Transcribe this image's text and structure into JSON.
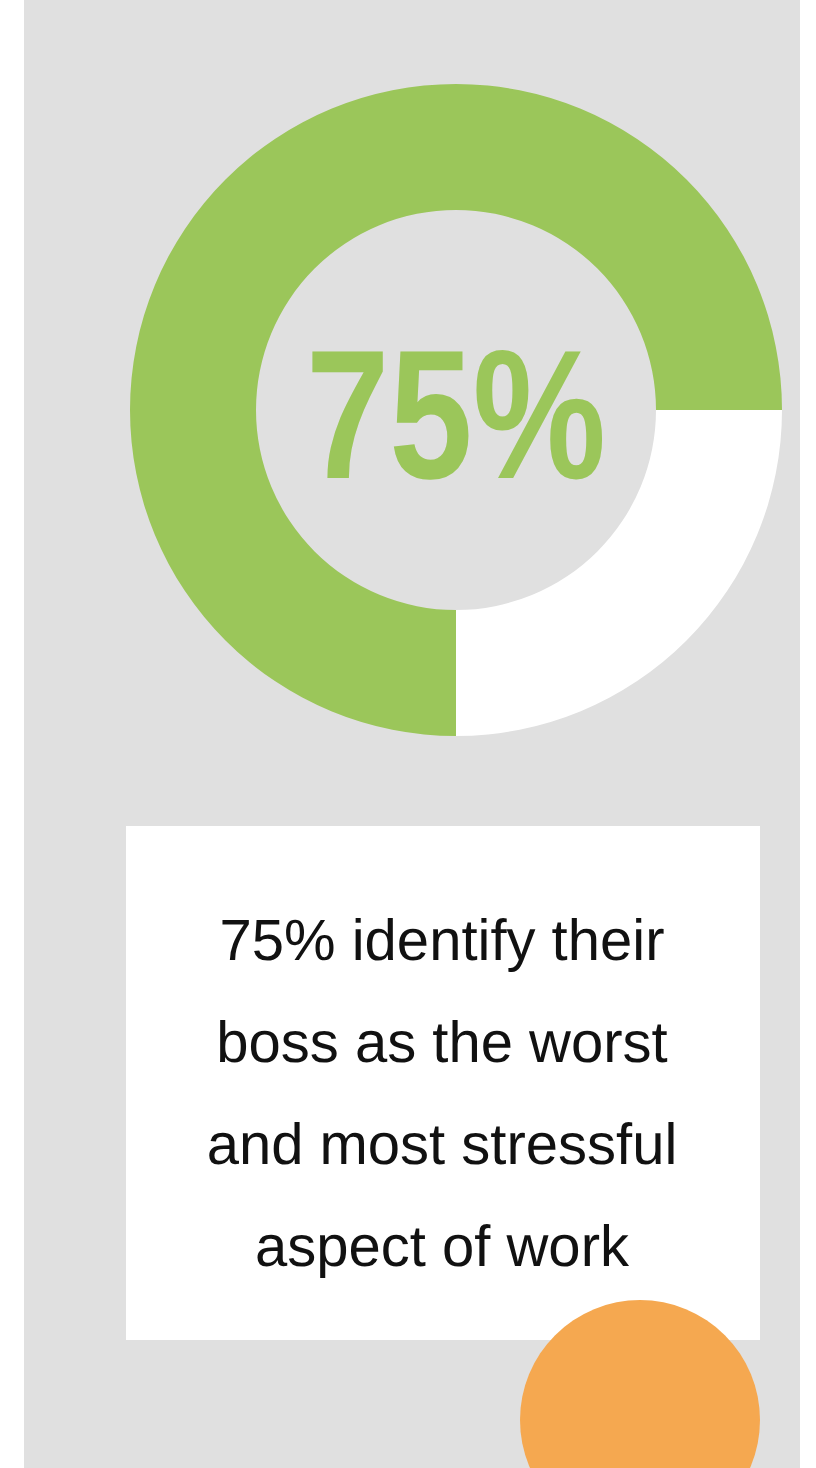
{
  "chart_data": {
    "type": "donut",
    "categories": [
      null,
      null
    ],
    "values": [
      75,
      25
    ],
    "colors": [
      "#9bc65a",
      "#ffffff"
    ],
    "annotations": [
      "75%",
      "75% identify their boss as the worst and most stressful aspect of work"
    ]
  }
}
